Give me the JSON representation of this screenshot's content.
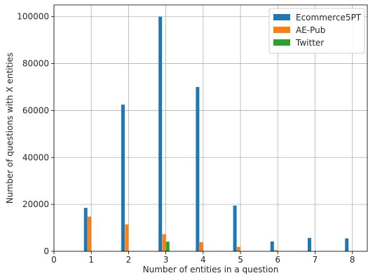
{
  "chart_data": {
    "type": "bar",
    "title": "",
    "xlabel": "Number of entities in a question",
    "ylabel": "Number of questions with X entities",
    "xlim": [
      0,
      8.4
    ],
    "ylim": [
      0,
      105000
    ],
    "x_ticks": [
      0,
      1,
      2,
      3,
      4,
      5,
      6,
      7,
      8
    ],
    "y_ticks": [
      0,
      20000,
      40000,
      60000,
      80000,
      100000
    ],
    "grid": true,
    "legend_position": "top-right",
    "series": [
      {
        "name": "Ecommerce5PT",
        "color": "#1f77b4",
        "points": [
          {
            "x": 0.85,
            "y": 18500
          },
          {
            "x": 1.85,
            "y": 62500
          },
          {
            "x": 2.85,
            "y": 100000
          },
          {
            "x": 3.85,
            "y": 70000
          },
          {
            "x": 4.85,
            "y": 19500
          },
          {
            "x": 5.85,
            "y": 4200
          },
          {
            "x": 6.85,
            "y": 5700
          },
          {
            "x": 7.85,
            "y": 5500
          }
        ]
      },
      {
        "name": "AE-Pub",
        "color": "#ff7f0e",
        "points": [
          {
            "x": 0.95,
            "y": 14800
          },
          {
            "x": 1.95,
            "y": 11500
          },
          {
            "x": 2.95,
            "y": 7300
          },
          {
            "x": 3.95,
            "y": 3900
          },
          {
            "x": 4.95,
            "y": 1900
          },
          {
            "x": 5.95,
            "y": 500
          }
        ]
      },
      {
        "name": "Twitter",
        "color": "#2ca02c",
        "points": [
          {
            "x": 3.05,
            "y": 4100
          }
        ]
      }
    ]
  }
}
